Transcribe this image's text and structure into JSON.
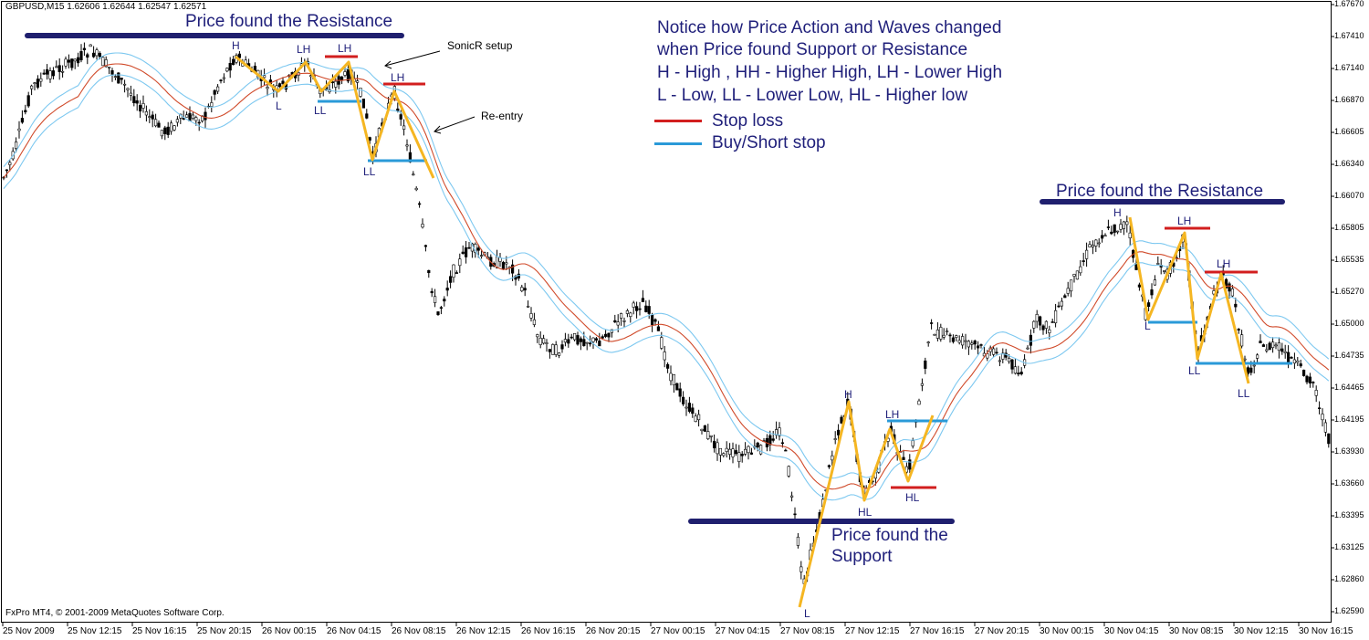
{
  "header": {
    "symbol_line": "GBPUSD,M15  1.62606 1.62644 1.62547 1.62571"
  },
  "footer": {
    "copyright": "FxPro MT4, © 2001-2009 MetaQuotes Software Corp."
  },
  "colors": {
    "sma_outer": "#7dc8f0",
    "sma_mid": "#d04a2a",
    "zone": "#1f1f6e",
    "wave": "#f5b622",
    "stop": "#d21e1e",
    "entry": "#2a9ad8",
    "candle": "#000000"
  },
  "annotations": {
    "resistance_left": "Price found the Resistance",
    "resistance_right": "Price found the Resistance",
    "support_line1": "Price found the",
    "support_line2": "Support",
    "sonicr": "SonicR setup",
    "reentry": "Re-entry"
  },
  "notes": {
    "line1": "Notice how Price Action and Waves changed",
    "line2": "when Price found Support or Resistance",
    "line3": "H - High , HH - Higher High, LH - Lower High",
    "line4": "L - Low, LL - Lower Low, HL - Higher low",
    "stop_label": "Stop loss",
    "buy_label": "Buy/Short stop"
  },
  "wave_labels": [
    {
      "t": "H"
    },
    {
      "t": "LH"
    },
    {
      "t": "LH"
    },
    {
      "t": "L"
    },
    {
      "t": "LL"
    },
    {
      "t": "LH"
    },
    {
      "t": "LL"
    },
    {
      "t": "H"
    },
    {
      "t": "LH"
    },
    {
      "t": "HL"
    },
    {
      "t": "HL"
    },
    {
      "t": "L"
    },
    {
      "t": "H"
    },
    {
      "t": "LH"
    },
    {
      "t": "LH"
    },
    {
      "t": "L"
    },
    {
      "t": "LL"
    },
    {
      "t": "LL"
    }
  ],
  "y_axis": [
    "1.67670",
    "1.67410",
    "1.67140",
    "1.66870",
    "1.66605",
    "1.66340",
    "1.66070",
    "1.65805",
    "1.65535",
    "1.65270",
    "1.65000",
    "1.64735",
    "1.64465",
    "1.64195",
    "1.63930",
    "1.63660",
    "1.63395",
    "1.63125",
    "1.62860",
    "1.62590"
  ],
  "x_axis": [
    "25 Nov 2009",
    "25 Nov 12:15",
    "25 Nov 16:15",
    "25 Nov 20:15",
    "26 Nov 00:15",
    "26 Nov 04:15",
    "26 Nov 08:15",
    "26 Nov 12:15",
    "26 Nov 16:15",
    "26 Nov 20:15",
    "27 Nov 00:15",
    "27 Nov 04:15",
    "27 Nov 08:15",
    "27 Nov 12:15",
    "27 Nov 16:15",
    "27 Nov 20:15",
    "30 Nov 00:15",
    "30 Nov 04:15",
    "30 Nov 08:15",
    "30 Nov 12:15",
    "30 Nov 16:15"
  ],
  "price_path": [
    [
      0,
      203
    ],
    [
      15,
      170
    ],
    [
      35,
      95
    ],
    [
      55,
      80
    ],
    [
      75,
      70
    ],
    [
      100,
      55
    ],
    [
      125,
      80
    ],
    [
      150,
      110
    ],
    [
      165,
      130
    ],
    [
      180,
      145
    ],
    [
      200,
      130
    ],
    [
      225,
      128
    ],
    [
      240,
      90
    ],
    [
      258,
      62
    ],
    [
      275,
      75
    ],
    [
      290,
      90
    ],
    [
      305,
      100
    ],
    [
      320,
      85
    ],
    [
      335,
      68
    ],
    [
      350,
      100
    ],
    [
      365,
      92
    ],
    [
      385,
      80
    ],
    [
      400,
      115
    ],
    [
      408,
      175
    ],
    [
      420,
      130
    ],
    [
      432,
      100
    ],
    [
      445,
      150
    ],
    [
      460,
      230
    ],
    [
      470,
      300
    ],
    [
      480,
      345
    ],
    [
      495,
      300
    ],
    [
      515,
      270
    ],
    [
      535,
      285
    ],
    [
      560,
      290
    ],
    [
      575,
      320
    ],
    [
      590,
      370
    ],
    [
      610,
      385
    ],
    [
      630,
      370
    ],
    [
      655,
      375
    ],
    [
      680,
      350
    ],
    [
      705,
      330
    ],
    [
      720,
      360
    ],
    [
      735,
      410
    ],
    [
      750,
      440
    ],
    [
      765,
      460
    ],
    [
      785,
      490
    ],
    [
      810,
      500
    ],
    [
      835,
      490
    ],
    [
      855,
      470
    ],
    [
      865,
      520
    ],
    [
      875,
      600
    ],
    [
      880,
      645
    ],
    [
      890,
      600
    ],
    [
      900,
      560
    ],
    [
      915,
      480
    ],
    [
      930,
      440
    ],
    [
      945,
      540
    ],
    [
      960,
      520
    ],
    [
      975,
      470
    ],
    [
      995,
      520
    ],
    [
      1010,
      420
    ],
    [
      1020,
      360
    ],
    [
      1040,
      370
    ],
    [
      1060,
      375
    ],
    [
      1080,
      385
    ],
    [
      1100,
      390
    ],
    [
      1120,
      410
    ],
    [
      1135,
      350
    ],
    [
      1150,
      360
    ],
    [
      1165,
      330
    ],
    [
      1180,
      300
    ],
    [
      1195,
      270
    ],
    [
      1210,
      255
    ],
    [
      1235,
      245
    ],
    [
      1255,
      345
    ],
    [
      1270,
      290
    ],
    [
      1280,
      300
    ],
    [
      1298,
      255
    ],
    [
      1312,
      390
    ],
    [
      1325,
      340
    ],
    [
      1338,
      300
    ],
    [
      1350,
      320
    ],
    [
      1368,
      410
    ],
    [
      1380,
      380
    ],
    [
      1400,
      380
    ],
    [
      1420,
      400
    ],
    [
      1440,
      420
    ],
    [
      1455,
      480
    ]
  ]
}
